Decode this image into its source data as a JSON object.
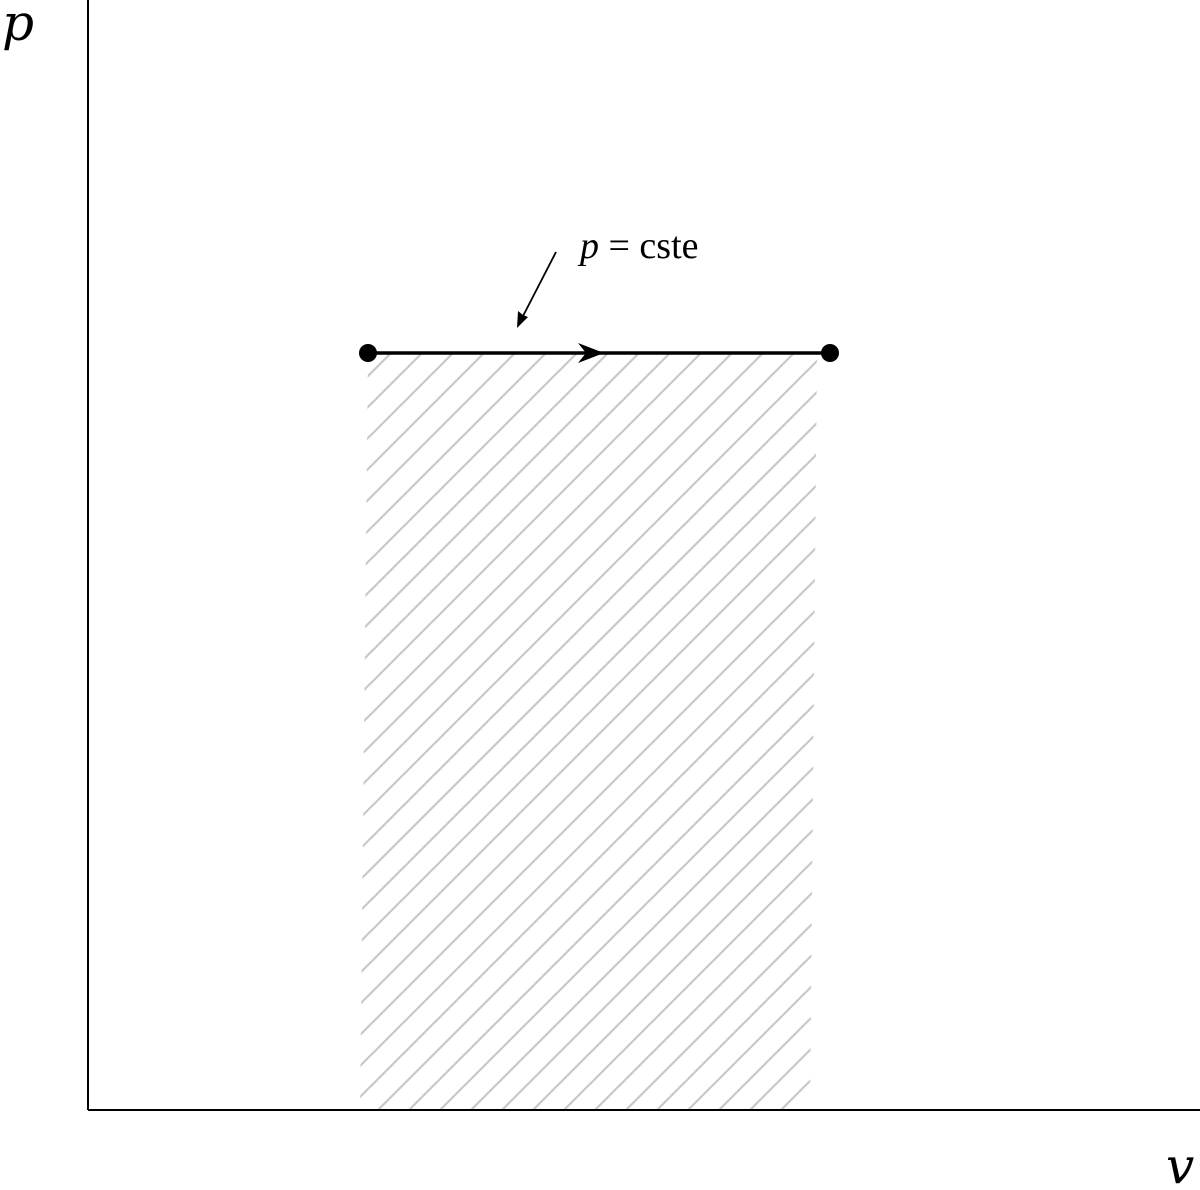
{
  "axes": {
    "y_label": "p",
    "x_label": "v"
  },
  "process": {
    "label_var": "p",
    "label_rest": " = cste",
    "direction": "left-to-right"
  },
  "colors": {
    "ink": "#000000",
    "hatch": "#c8c8c8",
    "background": "#ffffff"
  }
}
